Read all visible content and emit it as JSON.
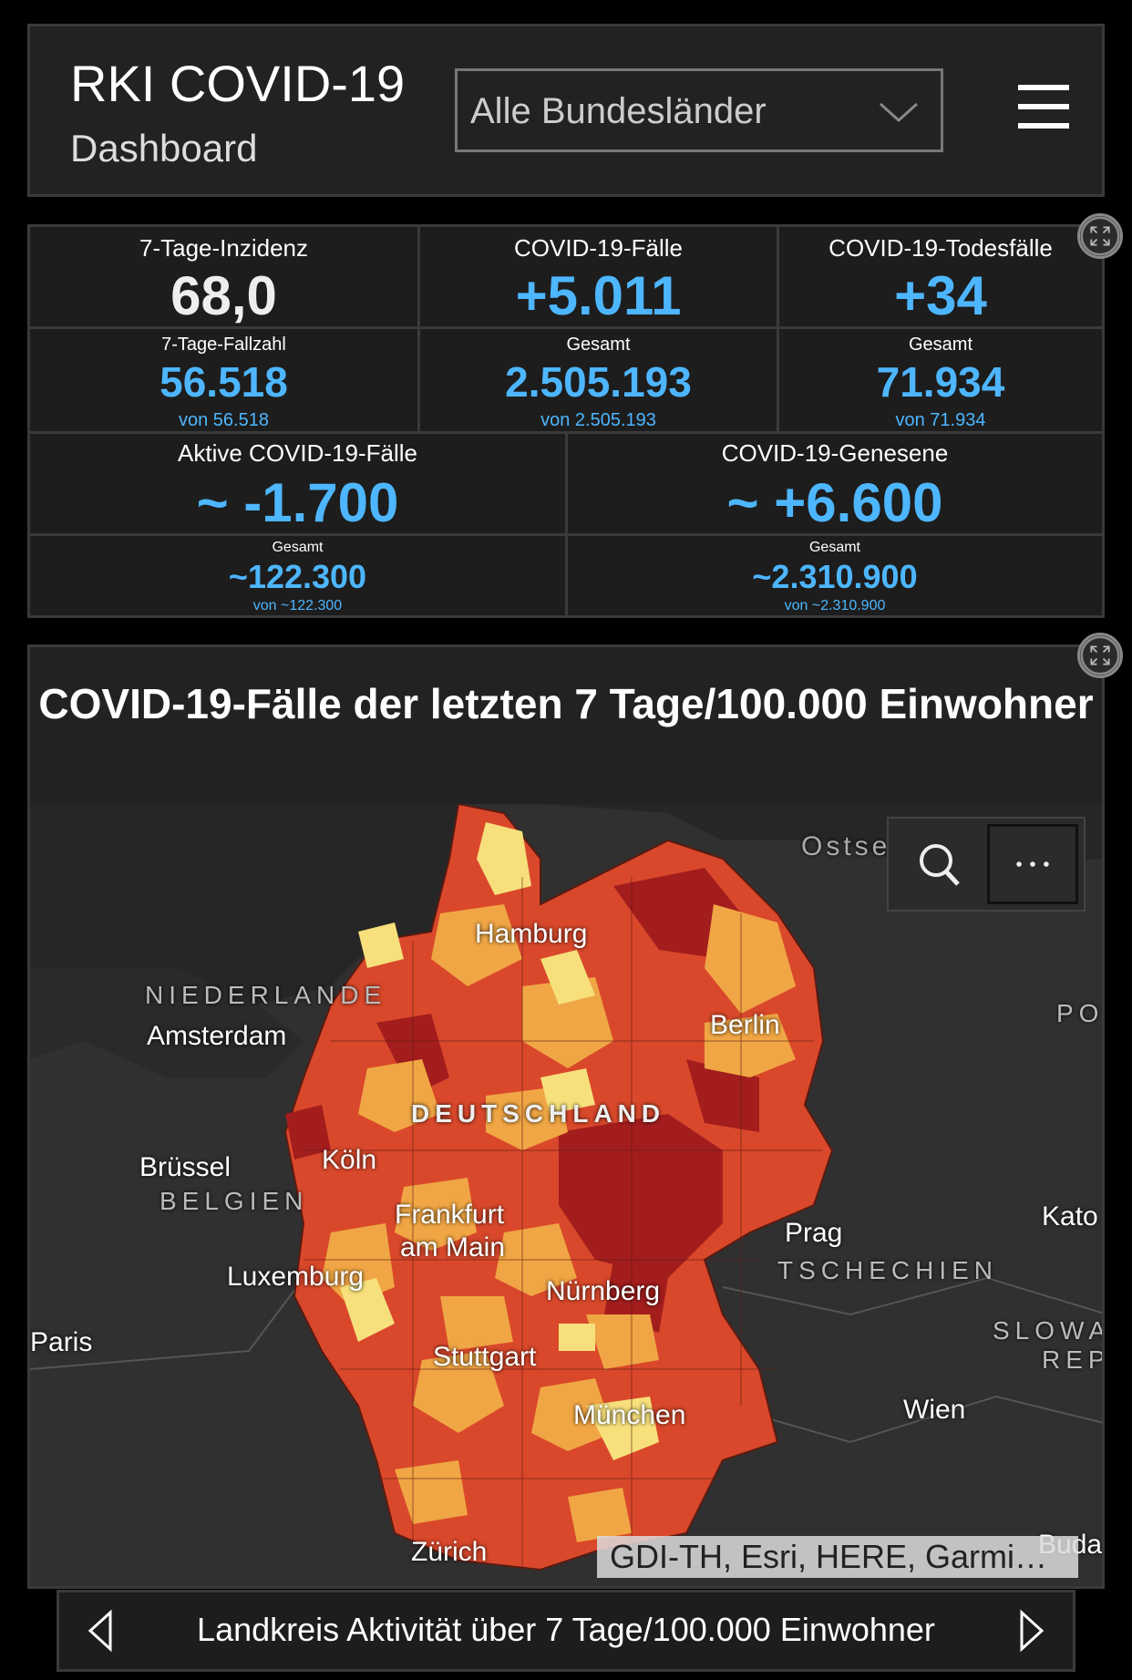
{
  "header": {
    "title_line1": "RKI COVID-19",
    "title_line2": "Dashboard",
    "region_select": "Alle Bundesländer"
  },
  "stats": {
    "incidence": {
      "label": "7-Tage-Inzidenz",
      "value": "68,0"
    },
    "cases_new": {
      "label": "COVID-19-Fälle",
      "value": "+5.011"
    },
    "deaths_new": {
      "label": "COVID-19-Todesfälle",
      "value": "+34"
    },
    "cases7": {
      "label": "7-Tage-Fallzahl",
      "value": "56.518",
      "sub": "von 56.518"
    },
    "cases_total": {
      "label": "Gesamt",
      "value": "2.505.193",
      "sub": "von 2.505.193"
    },
    "deaths_total": {
      "label": "Gesamt",
      "value": "71.934",
      "sub": "von 71.934"
    },
    "active_new": {
      "label": "Aktive COVID-19-Fälle",
      "value": "~ -1.700"
    },
    "recovered_new": {
      "label": "COVID-19-Genesene",
      "value": "~ +6.600"
    },
    "active_total": {
      "label": "Gesamt",
      "value": "~122.300",
      "sub": "von ~122.300"
    },
    "recovered_total": {
      "label": "Gesamt",
      "value": "~2.310.900",
      "sub": "von ~2.310.900"
    }
  },
  "map": {
    "title": "COVID-19-Fälle der letzten 7 Tage/100.000 Einwohner",
    "labels": {
      "ostsee": "Ostse",
      "hamburg": "Hamburg",
      "niederlande": "NIEDERLANDE",
      "amsterdam": "Amsterdam",
      "berlin": "Berlin",
      "po": "PO",
      "deutschland": "DEUTSCHLAND",
      "bruessel": "Brüssel",
      "koeln": "Köln",
      "belgien": "BELGIEN",
      "frankfurt1": "Frankfurt",
      "frankfurt2": "am Main",
      "kato": "Kato",
      "prag": "Prag",
      "tschechien": "TSCHECHIEN",
      "luxemburg": "Luxemburg",
      "nuernberg": "Nürnberg",
      "paris": "Paris",
      "slowa": "SLOWA",
      "rep": "REP",
      "stuttgart": "Stuttgart",
      "wien": "Wien",
      "muenchen": "München",
      "zuerich": "Zürich",
      "buda": "Buda"
    },
    "attribution": "GDI-TH, Esri, HERE, Garmi…",
    "colors": {
      "light": "#f7e07c",
      "medium": "#f0a644",
      "high": "#d9482b",
      "veryhigh": "#a31d1d"
    },
    "tools": {
      "search_icon": "search-icon",
      "more_icon": "more-icon"
    }
  },
  "footer": {
    "text": "Landkreis Aktivität über 7 Tage/100.000 Einwohner"
  }
}
